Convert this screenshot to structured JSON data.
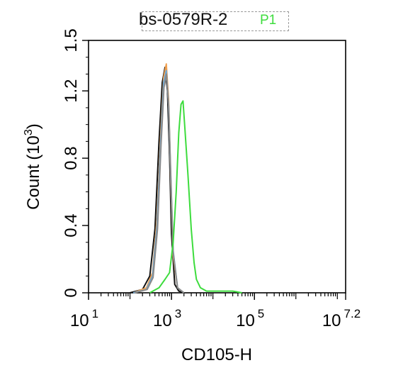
{
  "title": "bs-0579R-2",
  "gate_label": "P1",
  "chart_data": {
    "type": "line",
    "title": "bs-0579R-2",
    "xlabel": "CD105-H",
    "ylabel": "Count",
    "ylabel_exp": "3",
    "xscale": "log",
    "xlim": [
      10,
      15848931.9
    ],
    "ylim": [
      0,
      1.5
    ],
    "x_ticks": [
      {
        "value": 10,
        "base": "10",
        "exp": "1"
      },
      {
        "value": 1000,
        "base": "10",
        "exp": "3"
      },
      {
        "value": 100000,
        "base": "10",
        "exp": "5"
      },
      {
        "value": 15848931.9,
        "base": "10",
        "exp": "7.2"
      }
    ],
    "y_ticks": [
      {
        "value": 0,
        "label": "0"
      },
      {
        "value": 0.4,
        "label": "0.4"
      },
      {
        "value": 0.8,
        "label": "0.8"
      },
      {
        "value": 1.2,
        "label": "1.2"
      },
      {
        "value": 1.5,
        "label": "1.5"
      }
    ],
    "grid": false,
    "series": [
      {
        "color": "#111111",
        "x": [
          100,
          200,
          300,
          400,
          500,
          600,
          700,
          800,
          900,
          1000,
          1200,
          1500,
          2000
        ],
        "y": [
          0,
          0.02,
          0.1,
          0.38,
          0.9,
          1.25,
          1.34,
          1.2,
          0.82,
          0.35,
          0.05,
          0.01,
          0
        ]
      },
      {
        "color": "#f0a050",
        "x": [
          120,
          250,
          350,
          450,
          550,
          650,
          750,
          850,
          950,
          1100,
          1400,
          2000
        ],
        "y": [
          0,
          0.03,
          0.12,
          0.45,
          0.95,
          1.28,
          1.36,
          1.15,
          0.7,
          0.22,
          0.03,
          0
        ]
      },
      {
        "color": "#6aa8d8",
        "x": [
          120,
          250,
          350,
          450,
          550,
          650,
          750,
          850,
          950,
          1100,
          1400,
          2000
        ],
        "y": [
          0,
          0.02,
          0.1,
          0.4,
          0.9,
          1.25,
          1.32,
          1.12,
          0.72,
          0.25,
          0.03,
          0
        ]
      },
      {
        "color": "#8a8a8a",
        "x": [
          130,
          260,
          360,
          460,
          560,
          660,
          760,
          860,
          960,
          1100,
          1400,
          2000
        ],
        "y": [
          0,
          0.02,
          0.09,
          0.38,
          0.88,
          1.22,
          1.3,
          1.1,
          0.7,
          0.24,
          0.03,
          0
        ]
      },
      {
        "color": "#3ddc3d",
        "x": [
          300,
          500,
          700,
          900,
          1100,
          1300,
          1500,
          1700,
          1900,
          2100,
          2500,
          3000,
          3500,
          4000,
          5000,
          7000,
          15000,
          30000,
          50000
        ],
        "y": [
          0,
          0.03,
          0.08,
          0.12,
          0.3,
          0.6,
          0.95,
          1.12,
          1.14,
          0.98,
          0.7,
          0.38,
          0.18,
          0.08,
          0.03,
          0.01,
          0.01,
          0.01,
          0
        ]
      }
    ]
  }
}
